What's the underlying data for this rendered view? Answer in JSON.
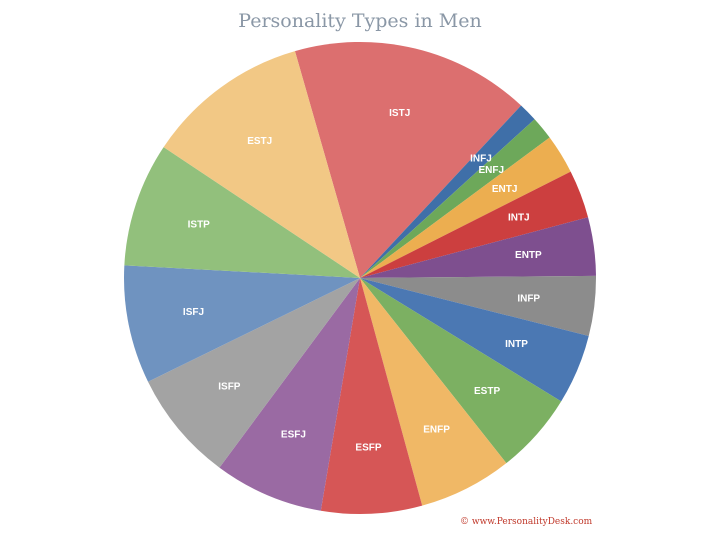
{
  "chart_data": {
    "type": "pie",
    "title": "Personality Types in Men",
    "slices": [
      {
        "label": "ISTJ",
        "value": 16.4,
        "color": "#dc6f6f"
      },
      {
        "label": "INFJ",
        "value": 1.3,
        "color": "#3f6fa8"
      },
      {
        "label": "ENFJ",
        "value": 1.6,
        "color": "#6da85a"
      },
      {
        "label": "ENTJ",
        "value": 2.7,
        "color": "#ecae50"
      },
      {
        "label": "INTJ",
        "value": 3.3,
        "color": "#cc3f3f"
      },
      {
        "label": "ENTP",
        "value": 4.0,
        "color": "#7e4f8f"
      },
      {
        "label": "INFP",
        "value": 4.1,
        "color": "#8c8c8c"
      },
      {
        "label": "INTP",
        "value": 4.8,
        "color": "#4b78b3"
      },
      {
        "label": "ESTP",
        "value": 5.6,
        "color": "#7cb062"
      },
      {
        "label": "ENFP",
        "value": 6.4,
        "color": "#f0b866"
      },
      {
        "label": "ESFP",
        "value": 6.9,
        "color": "#d65656"
      },
      {
        "label": "ESFJ",
        "value": 7.5,
        "color": "#9a6aa3"
      },
      {
        "label": "ISFP",
        "value": 7.6,
        "color": "#a3a3a3"
      },
      {
        "label": "ISFJ",
        "value": 8.1,
        "color": "#6f93c0"
      },
      {
        "label": "ISTP",
        "value": 8.5,
        "color": "#92c07c"
      },
      {
        "label": "ESTJ",
        "value": 11.2,
        "color": "#f2c885"
      }
    ]
  },
  "credit": "© www.PersonalityDesk.com"
}
